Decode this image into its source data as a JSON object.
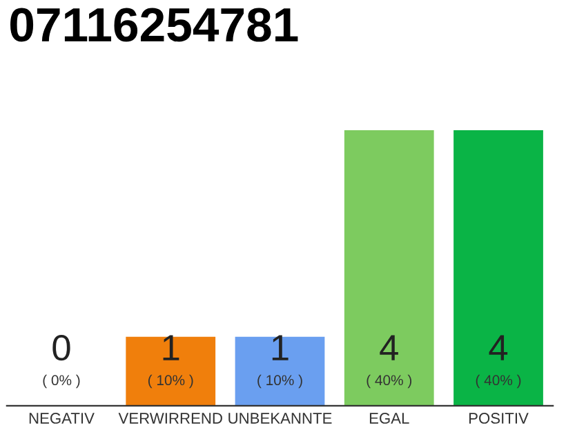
{
  "chart_data": {
    "type": "bar",
    "title": "07116254781",
    "categories": [
      "NEGATIV",
      "VERWIRREND",
      "UNBEKANNTE",
      "EGAL",
      "POSITIV"
    ],
    "values": [
      0,
      1,
      1,
      4,
      4
    ],
    "colors": [
      "#aaaaaa",
      "#f07f0c",
      "#6a9ff0",
      "#7dcb5f",
      "#0ab446"
    ],
    "value_labels": [
      "0\n( 0% )",
      "1\n( 10% )",
      "1\n( 10% )",
      "4\n( 40% )",
      "4\n( 40% )"
    ],
    "ylim": [
      0,
      4
    ],
    "tick_labels": "x",
    "grid": false,
    "legend": false
  }
}
